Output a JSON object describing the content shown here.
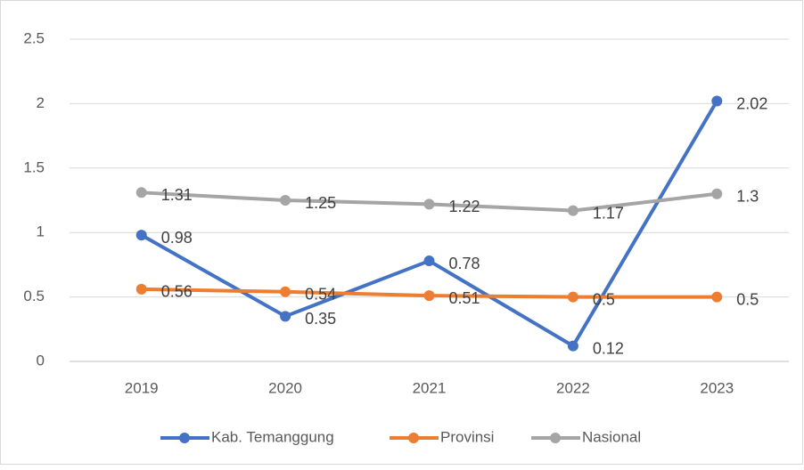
{
  "chart_data": {
    "type": "line",
    "categories": [
      "2019",
      "2020",
      "2021",
      "2022",
      "2023"
    ],
    "series": [
      {
        "name": "Kab. Temanggung",
        "color": "#4472c4",
        "values": [
          0.98,
          0.35,
          0.78,
          0.12,
          2.02
        ]
      },
      {
        "name": "Provinsi",
        "color": "#ed7d31",
        "values": [
          0.56,
          0.54,
          0.51,
          0.5,
          0.5
        ]
      },
      {
        "name": "Nasional",
        "color": "#a5a5a5",
        "values": [
          1.31,
          1.25,
          1.22,
          1.17,
          1.3
        ]
      }
    ],
    "ylim": [
      0,
      2.5
    ],
    "yticks": [
      0,
      0.5,
      1,
      1.5,
      2,
      2.5
    ],
    "grid": true,
    "legend": "bottom"
  }
}
